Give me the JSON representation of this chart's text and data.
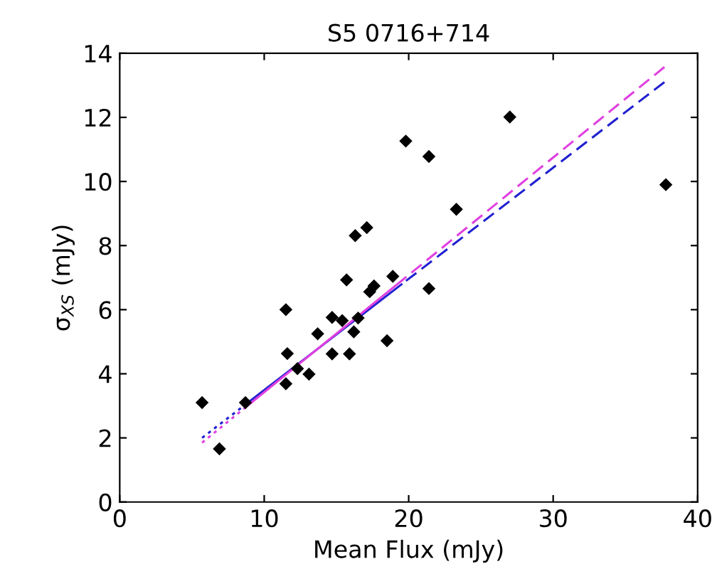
{
  "chart_data": {
    "type": "scatter",
    "title": "S5 0716+714",
    "xlabel": "Mean Flux (mJy)",
    "ylabel": "σ$_{XS}$ (mJy)",
    "xlim": [
      0,
      40
    ],
    "ylim": [
      0,
      14
    ],
    "xticks": [
      0,
      10,
      20,
      30,
      40
    ],
    "yticks": [
      0,
      2,
      4,
      6,
      8,
      10,
      12,
      14
    ],
    "grid": false,
    "legend": false,
    "series": [
      {
        "marker": "diamond",
        "color": "#000000",
        "x": [
          5.7,
          6.9,
          8.7,
          11.5,
          11.6,
          11.5,
          12.3,
          13.1,
          13.7,
          14.7,
          14.7,
          15.4,
          15.7,
          15.9,
          16.2,
          16.3,
          16.5,
          17.1,
          17.3,
          17.6,
          18.5,
          18.9,
          19.8,
          21.4,
          21.4,
          23.3,
          27.0,
          37.8
        ],
        "values": [
          3.1,
          1.66,
          3.1,
          6.0,
          4.63,
          3.69,
          4.16,
          3.99,
          5.25,
          5.76,
          4.62,
          5.66,
          6.93,
          4.62,
          5.31,
          8.31,
          5.74,
          8.56,
          6.56,
          6.74,
          5.03,
          7.04,
          11.26,
          10.78,
          6.66,
          9.13,
          12.01,
          9.9
        ]
      },
      {
        "type": "line",
        "color": "#2020d0",
        "line_style": "dotted",
        "x": [
          5.7,
          8.7
        ],
        "values": [
          2.0,
          3.04
        ]
      },
      {
        "type": "line",
        "color": "#2020d0",
        "line_style": "solid",
        "x": [
          8.7,
          19.5
        ],
        "values": [
          3.04,
          6.79
        ]
      },
      {
        "type": "line",
        "color": "#2020d0",
        "line_style": "dashed",
        "x": [
          37.7,
          19.5
        ],
        "values": [
          13.1,
          6.79
        ]
      },
      {
        "type": "line",
        "color": "#e040e0",
        "line_style": "dotted",
        "x": [
          5.7,
          8.7
        ],
        "values": [
          1.85,
          2.95
        ]
      },
      {
        "type": "line",
        "color": "#e040e0",
        "line_style": "solid",
        "x": [
          8.7,
          19.5
        ],
        "values": [
          2.95,
          6.9
        ]
      },
      {
        "type": "line",
        "color": "#e040e0",
        "line_style": "dashed",
        "x": [
          37.7,
          19.5
        ],
        "values": [
          13.57,
          6.9
        ]
      }
    ]
  }
}
